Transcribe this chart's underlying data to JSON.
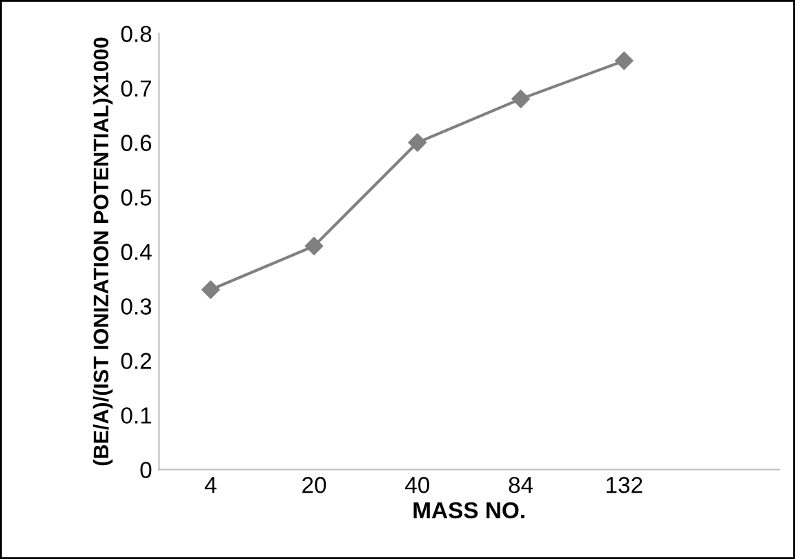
{
  "chart_data": {
    "type": "line",
    "xlabel": "MASS NO.",
    "ylabel": "(BE/A)/(IST IONIZATION POTENTIAL)X1000",
    "categories": [
      "4",
      "20",
      "40",
      "84",
      "132",
      null
    ],
    "series": [
      {
        "color": "#808080",
        "values": [
          0.33,
          0.41,
          0.6,
          0.68,
          0.75,
          null
        ]
      }
    ],
    "ylim": [
      0,
      0.8
    ],
    "yticks": [
      0,
      0.1,
      0.2,
      0.3,
      0.4,
      0.5,
      0.6,
      0.7,
      0.8
    ],
    "grid": false,
    "legend": false,
    "marker": "diamond",
    "line_style": "solid"
  }
}
